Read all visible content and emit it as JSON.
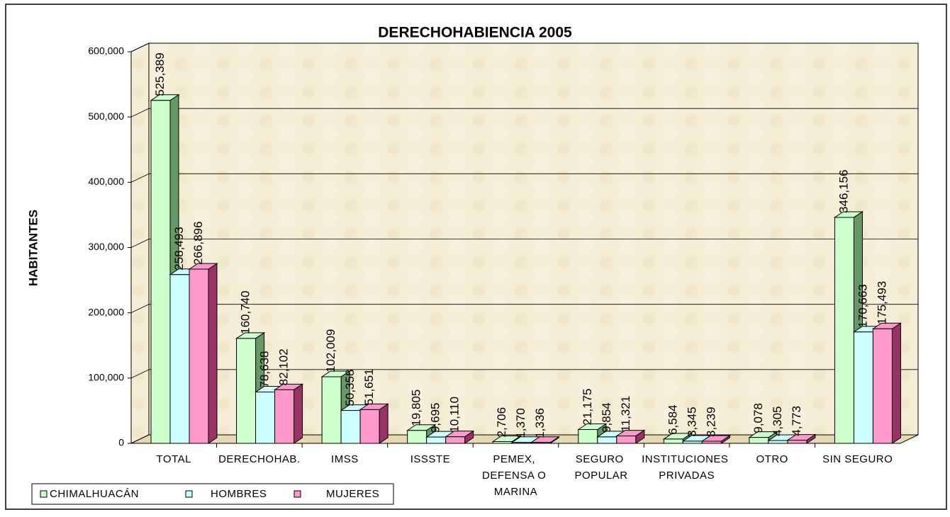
{
  "chart_data": {
    "type": "bar3d",
    "title": "DERECHOHABIENCIA 2005",
    "y_label": "HABITANTES",
    "categories": [
      "TOTAL",
      "DERECHOHAB.",
      "IMSS",
      "ISSSTE",
      "PEMEX, DEFENSA O MARINA",
      "SEGURO POPULAR",
      "INSTITUCIONES PRIVADAS",
      "OTRO",
      "SIN SEGURO"
    ],
    "series": [
      {
        "name": "CHIMALHUACÁN",
        "color": "#ccffcc",
        "side_color": "#669966",
        "values": [
          525389,
          160740,
          102009,
          19805,
          2706,
          21175,
          6584,
          9078,
          346156
        ],
        "value_labels": [
          "525,389",
          "160,740",
          "102,009",
          "19,805",
          "2,706",
          "21,175",
          "6,584",
          "9,078",
          "346,156"
        ]
      },
      {
        "name": "HOMBRES",
        "color": "#ccffff",
        "side_color": "#669999",
        "values": [
          258493,
          78638,
          50358,
          9695,
          1370,
          9854,
          3345,
          4305,
          170663
        ],
        "value_labels": [
          "258,493",
          "78,638",
          "50,358",
          "9,695",
          "1,370",
          "9,854",
          "3,345",
          "4,305",
          "170,663"
        ]
      },
      {
        "name": "MUJERES",
        "color": "#ff99cc",
        "side_color": "#993366",
        "values": [
          266896,
          82102,
          51651,
          10110,
          1336,
          11321,
          3239,
          4773,
          175493
        ],
        "value_labels": [
          "266,896",
          "82,102",
          "51,651",
          "10,110",
          "1,336",
          "11,321",
          "3,239",
          "4,773",
          "175,493"
        ]
      }
    ],
    "ylim": [
      0,
      600000
    ],
    "yticks": [
      0,
      {
        "value": 100000,
        "label": "100,000"
      },
      {
        "value": 200000,
        "label": "200,000"
      },
      {
        "value": 300000,
        "label": "300,000"
      },
      {
        "value": 400000,
        "label": "400,000"
      },
      {
        "value": 500000,
        "label": "500,000"
      },
      {
        "value": 600000,
        "label": "600,000"
      }
    ],
    "grid": true,
    "legend": "bottom-left"
  }
}
